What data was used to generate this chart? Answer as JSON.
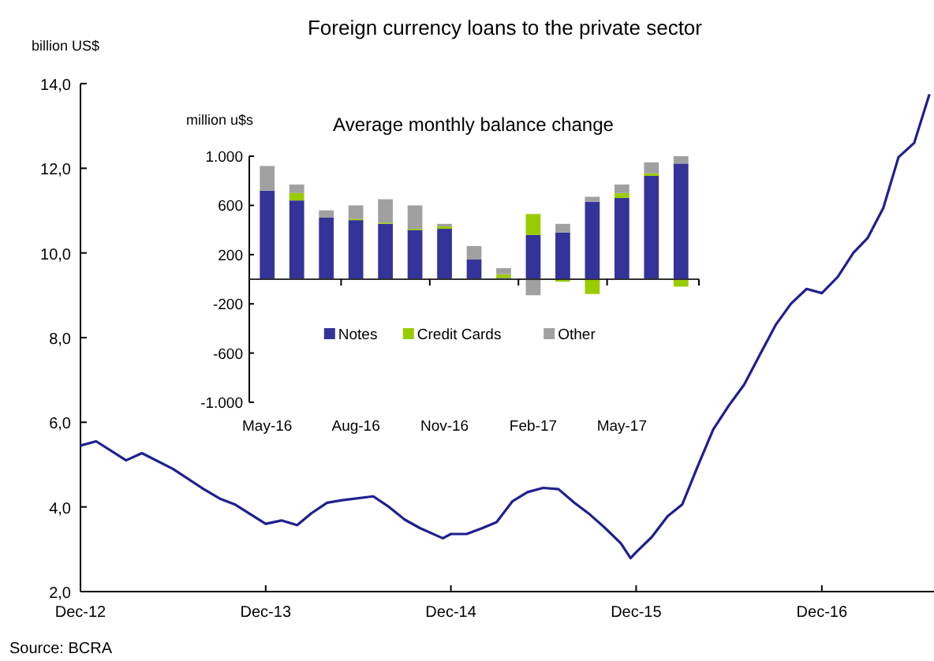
{
  "chart_data": [
    {
      "type": "line",
      "title": "Foreign currency loans to the private sector",
      "ylabel": "billion US$",
      "annotations": [
        "Source: BCRA"
      ],
      "grid": false,
      "x": [
        "2012-12-01",
        "2013-01-01",
        "2013-03-01",
        "2013-04-01",
        "2013-06-01",
        "2013-08-01",
        "2013-09-01",
        "2013-10-01",
        "2013-12-01",
        "2014-01-01",
        "2014-02-01",
        "2014-03-01",
        "2014-04-01",
        "2014-05-01",
        "2014-07-01",
        "2014-08-01",
        "2014-09-01",
        "2014-10-01",
        "2014-11-15",
        "2014-12-01",
        "2015-01-01",
        "2015-02-01",
        "2015-03-01",
        "2015-04-01",
        "2015-05-01",
        "2015-06-01",
        "2015-07-01",
        "2015-08-01",
        "2015-09-01",
        "2015-10-01",
        "2015-11-01",
        "2015-11-20",
        "2015-12-01",
        "2016-01-01",
        "2016-02-01",
        "2016-03-01",
        "2016-04-01",
        "2016-05-01",
        "2016-06-01",
        "2016-07-01",
        "2016-08-01",
        "2016-09-01",
        "2016-10-01",
        "2016-11-01",
        "2016-12-01",
        "2017-01-01",
        "2017-02-01",
        "2017-03-01",
        "2017-04-01",
        "2017-05-01",
        "2017-06-01",
        "2017-07-01"
      ],
      "series": [
        {
          "color": "#1f1f8f",
          "values": [
            5.45,
            5.55,
            5.1,
            5.27,
            4.9,
            4.42,
            4.2,
            4.06,
            3.6,
            3.68,
            3.57,
            3.85,
            4.1,
            4.16,
            4.25,
            4.0,
            3.7,
            3.5,
            3.26,
            3.36,
            3.36,
            3.5,
            3.64,
            4.13,
            4.35,
            4.45,
            4.42,
            4.1,
            3.82,
            3.5,
            3.14,
            2.79,
            2.93,
            3.29,
            3.78,
            4.06,
            4.98,
            5.83,
            6.4,
            6.89,
            7.6,
            8.3,
            8.8,
            9.15,
            9.05,
            9.43,
            10.0,
            10.35,
            11.06,
            12.26,
            12.6,
            13.75
          ]
        }
      ],
      "xlim": [
        "2012-12-01",
        "2017-07-10"
      ],
      "xticks": [
        {
          "value": "2012-12-01",
          "label": "Dec-12"
        },
        {
          "value": "2013-12-01",
          "label": "Dec-13"
        },
        {
          "value": "2014-12-01",
          "label": "Dec-14"
        },
        {
          "value": "2015-12-01",
          "label": "Dec-15"
        },
        {
          "value": "2016-12-01",
          "label": "Dec-16"
        }
      ],
      "ylim": [
        2,
        14
      ],
      "yticks": [
        {
          "value": 2,
          "label": "2,0"
        },
        {
          "value": 4,
          "label": "4,0"
        },
        {
          "value": 6,
          "label": "6,0"
        },
        {
          "value": 8,
          "label": "8,0"
        },
        {
          "value": 10,
          "label": "10,0"
        },
        {
          "value": 12,
          "label": "12,0"
        },
        {
          "value": 14,
          "label": "14,0"
        }
      ]
    },
    {
      "type": "bar",
      "stacked": true,
      "title": "Average monthly balance change",
      "ylabel": "million u$s",
      "legend": "bottom",
      "grid": false,
      "categories": [
        "May-16",
        null,
        null,
        "Aug-16",
        null,
        null,
        "Nov-16",
        null,
        null,
        "Feb-17",
        null,
        null,
        "May-17",
        null,
        null
      ],
      "series": [
        {
          "name": "Notes",
          "color": "#333399",
          "values": [
            720,
            640,
            500,
            480,
            450,
            400,
            410,
            160,
            10,
            360,
            380,
            630,
            660,
            840,
            940
          ]
        },
        {
          "name": "Credit Cards",
          "color": "#99cc00",
          "values": [
            0,
            60,
            0,
            10,
            10,
            10,
            20,
            0,
            30,
            170,
            -20,
            -120,
            40,
            20,
            -60
          ]
        },
        {
          "name": "Other",
          "color": "#a0a0a0",
          "values": [
            200,
            70,
            60,
            110,
            190,
            190,
            20,
            110,
            50,
            -130,
            70,
            40,
            70,
            90,
            60
          ]
        }
      ],
      "ylim": [
        -1000,
        1000
      ],
      "yticks": [
        {
          "value": -1000,
          "label": "-1.000"
        },
        -600,
        -200,
        200,
        600,
        {
          "value": 1000,
          "label": "1.000"
        }
      ]
    }
  ]
}
